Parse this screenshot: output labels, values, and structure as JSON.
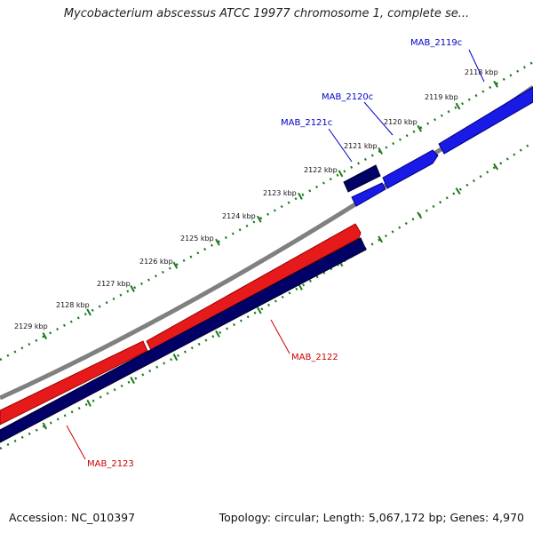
{
  "title": "Mycobacterium abscessus ATCC 19977 chromosome 1, complete se...",
  "footer": {
    "accession": "Accession: NC_010397",
    "info": "Topology: circular; Length: 5,067,172 bp; Genes: 4,970"
  },
  "ruler_labels": [
    "2118 kbp",
    "2119 kbp",
    "2120 kbp",
    "2121 kbp",
    "2122 kbp",
    "2123 kbp",
    "2124 kbp",
    "2125 kbp",
    "2126 kbp",
    "2127 kbp",
    "2128 kbp",
    "2129 kbp"
  ],
  "genes": [
    {
      "name": "MAB_2119c",
      "strand": "forward",
      "color": "#1a1ae6"
    },
    {
      "name": "MAB_2120c",
      "strand": "forward",
      "color": "#1a1ae6"
    },
    {
      "name": "MAB_2121c",
      "strand": "forward",
      "color": "#000066"
    },
    {
      "name": "MAB_2122",
      "strand": "reverse",
      "color": "#e61a1a"
    },
    {
      "name": "MAB_2123",
      "strand": "reverse",
      "color": "#000066"
    }
  ],
  "colors": {
    "forward_gene": "#1a1ae6",
    "forward_gene_dark": "#000066",
    "reverse_gene": "#e61a1a",
    "reverse_gene_dark": "#000066",
    "backbone": "#808080",
    "ruler_ticks": "#1a7a1a",
    "forward_label": "#0000cc",
    "reverse_label": "#cc0000"
  }
}
